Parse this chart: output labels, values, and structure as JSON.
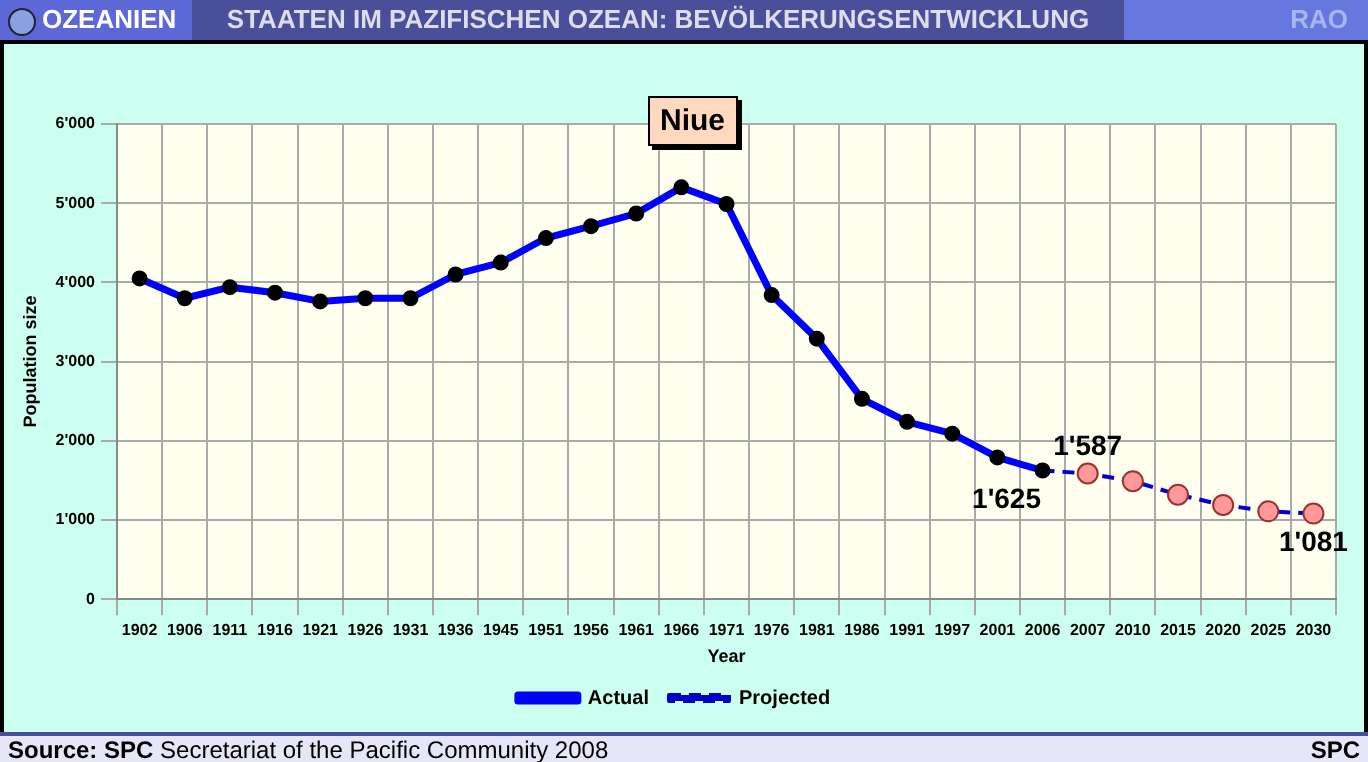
{
  "chart_data": {
    "type": "line",
    "title": "STAATEN IM PAZIFISCHEN OZEAN: BEVÖLKERUNGSENTWICKLUNG",
    "subtitle": "Niue",
    "xlabel": "Year",
    "ylabel": "Population size",
    "annotations": [
      "OZEANIEN",
      "RAO",
      "Source: SPC Secretariat of the Pacific Community 2008",
      "SPC"
    ],
    "categories": [
      "1902",
      "1906",
      "1911",
      "1916",
      "1921",
      "1926",
      "1931",
      "1936",
      "1945",
      "1951",
      "1956",
      "1961",
      "1966",
      "1971",
      "1976",
      "1981",
      "1986",
      "1991",
      "1997",
      "2001",
      "2006",
      "2007",
      "2010",
      "2015",
      "2020",
      "2025",
      "2030"
    ],
    "series": [
      {
        "name": "Actual",
        "color": "#0000ff",
        "line_style": "solid",
        "colors": [
          "#000000",
          "#000000",
          "#000000",
          "#000000",
          "#000000",
          "#000000",
          "#000000",
          "#000000",
          "#000000",
          "#000000",
          "#000000",
          "#000000",
          "#000000",
          "#000000",
          "#000000",
          "#000000",
          "#000000",
          "#000000",
          "#000000",
          "#000000",
          "#000000",
          null,
          null,
          null,
          null,
          null,
          null
        ],
        "values": [
          4050,
          3800,
          3940,
          3870,
          3760,
          3800,
          3800,
          4100,
          4250,
          4560,
          4710,
          4870,
          5200,
          4990,
          3840,
          3290,
          2530,
          2240,
          2090,
          1790,
          1625,
          null,
          null,
          null,
          null,
          null,
          null
        ],
        "value_labels": [
          null,
          null,
          null,
          null,
          null,
          null,
          null,
          null,
          null,
          null,
          null,
          null,
          null,
          null,
          null,
          null,
          null,
          null,
          null,
          null,
          "1'625",
          null,
          null,
          null,
          null,
          null,
          null
        ]
      },
      {
        "name": "Projected",
        "color": "#0000cc",
        "line_style": "dashed",
        "colors": [
          null,
          null,
          null,
          null,
          null,
          null,
          null,
          null,
          null,
          null,
          null,
          null,
          null,
          null,
          null,
          null,
          null,
          null,
          null,
          null,
          null,
          "#ff9999",
          "#ff9999",
          "#ff9999",
          "#ff9999",
          "#ff9999",
          "#ff9999"
        ],
        "values": [
          null,
          null,
          null,
          null,
          null,
          null,
          null,
          null,
          null,
          null,
          null,
          null,
          null,
          null,
          null,
          null,
          null,
          null,
          null,
          null,
          1625,
          1587,
          1490,
          1320,
          1190,
          1110,
          1081
        ],
        "value_labels": [
          null,
          null,
          null,
          null,
          null,
          null,
          null,
          null,
          null,
          null,
          null,
          null,
          null,
          null,
          null,
          null,
          null,
          null,
          null,
          null,
          null,
          "1'587",
          null,
          null,
          null,
          null,
          "1'081"
        ]
      }
    ],
    "ylim": [
      0,
      6000
    ],
    "yticks": [
      {
        "value": 0,
        "label": "0"
      },
      {
        "value": 1000,
        "label": "1'000"
      },
      {
        "value": 2000,
        "label": "2'000"
      },
      {
        "value": 3000,
        "label": "3'000"
      },
      {
        "value": 4000,
        "label": "4'000"
      },
      {
        "value": 5000,
        "label": "5'000"
      },
      {
        "value": 6000,
        "label": "6'000"
      }
    ],
    "grid": true,
    "legend": "bottom",
    "marker": "circle"
  }
}
